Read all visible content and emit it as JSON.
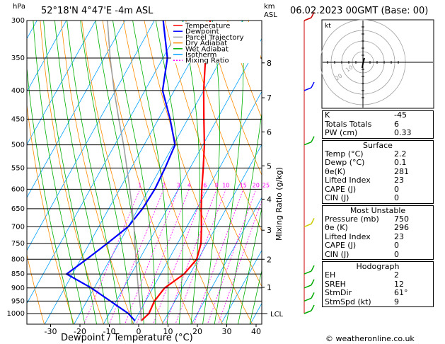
{
  "header": {
    "hpa_label": "hPa",
    "location": "52°18'N  4°47'E  -4m  ASL",
    "km_label": "km",
    "asl_label": "ASL",
    "date": "06.02.2023  00GMT  (Base: 00)"
  },
  "legend": [
    {
      "label": "Temperature",
      "color": "#ff0000",
      "dash": ""
    },
    {
      "label": "Dewpoint",
      "color": "#0000ff",
      "dash": ""
    },
    {
      "label": "Parcel Trajectory",
      "color": "#a0a0a0",
      "dash": ""
    },
    {
      "label": "Dry Adiabat",
      "color": "#ff8c00",
      "dash": ""
    },
    {
      "label": "Wet Adiabat",
      "color": "#00b000",
      "dash": ""
    },
    {
      "label": "Isotherm",
      "color": "#00a0ff",
      "dash": ""
    },
    {
      "label": "Mixing Ratio",
      "color": "#ff00ff",
      "dash": "2,2"
    }
  ],
  "colors": {
    "temperature": "#ff0000",
    "dewpoint": "#0000ff",
    "parcel": "#a0a0a0",
    "dry_adiabat": "#ff8c00",
    "wet_adiabat": "#00b000",
    "isotherm": "#00a0ff",
    "mixing_ratio": "#ff00ff"
  },
  "chart_data": {
    "type": "line",
    "title": "",
    "xlabel": "Dewpoint / Temperature (°C)",
    "ylabel": "hPa",
    "y2label": "Mixing Ratio (g/kg)",
    "x_ticks": [
      -30,
      -20,
      -10,
      0,
      10,
      20,
      30,
      40
    ],
    "pressure_levels": [
      300,
      350,
      400,
      450,
      500,
      550,
      600,
      650,
      700,
      750,
      800,
      850,
      900,
      950,
      1000
    ],
    "km_ticks": [
      {
        "label": "8",
        "p": 357
      },
      {
        "label": "7",
        "p": 412
      },
      {
        "label": "6",
        "p": 474
      },
      {
        "label": "5",
        "p": 545
      },
      {
        "label": "4",
        "p": 625
      },
      {
        "label": "3",
        "p": 710
      },
      {
        "label": "2",
        "p": 800
      },
      {
        "label": "1",
        "p": 898
      }
    ],
    "lcl_label": "LCL",
    "lcl_p": 1000,
    "mixing_ratio_labels": [
      "1",
      "2",
      "3",
      "4",
      "6",
      "8",
      "10",
      "15",
      "20",
      "25"
    ],
    "series": [
      {
        "name": "Temperature",
        "p": [
          1030,
          1000,
          950,
          900,
          850,
          800,
          750,
          700,
          650,
          600,
          550,
          500,
          450,
          400,
          350,
          300
        ],
        "t": [
          2.2,
          3.5,
          3.0,
          4.0,
          8.0,
          9.5,
          8.0,
          5.0,
          1.5,
          -2.0,
          -5.5,
          -9.5,
          -14.5,
          -20.0,
          -25.5,
          -31.0
        ]
      },
      {
        "name": "Dewpoint",
        "p": [
          1030,
          1000,
          950,
          900,
          850,
          800,
          750,
          700,
          650,
          600,
          550,
          500,
          450,
          400,
          350,
          300
        ],
        "t": [
          0.1,
          -3.5,
          -12.0,
          -21.0,
          -32.0,
          -28.0,
          -24.0,
          -20.0,
          -18.5,
          -18.0,
          -18.5,
          -19.5,
          -26.0,
          -34.0,
          -38.5,
          -47.0
        ]
      },
      {
        "name": "Parcel Trajectory",
        "p": [
          1030,
          1000,
          950,
          900,
          850,
          800,
          750,
          700,
          650,
          600,
          550,
          500,
          450,
          400,
          350,
          300
        ],
        "t": [
          2.2,
          0.8,
          -2.0,
          -5.0,
          -8.0,
          -11.2,
          -14.5,
          -18.0,
          -22.0,
          -26.5,
          -31.5,
          -37.0,
          -43.5,
          -50.5,
          -58.0,
          -66.0
        ]
      }
    ]
  },
  "hodograph": {
    "label": "kt",
    "ring_labels": [
      "10",
      "20"
    ]
  },
  "stats": {
    "basic": [
      {
        "label": "K",
        "value": "-45"
      },
      {
        "label": "Totals Totals",
        "value": "6"
      },
      {
        "label": "PW (cm)",
        "value": "0.33"
      }
    ],
    "surface_title": "Surface",
    "surface": [
      {
        "label": "Temp (°C)",
        "value": "2.2"
      },
      {
        "label": "Dewp (°C)",
        "value": "0.1"
      },
      {
        "label": "θe(K)",
        "value": "281"
      },
      {
        "label": "Lifted Index",
        "value": "23"
      },
      {
        "label": "CAPE (J)",
        "value": "0"
      },
      {
        "label": "CIN (J)",
        "value": "0"
      }
    ],
    "unstable_title": "Most Unstable",
    "unstable": [
      {
        "label": "Pressure (mb)",
        "value": "750"
      },
      {
        "label": "θe (K)",
        "value": "296"
      },
      {
        "label": "Lifted Index",
        "value": "23"
      },
      {
        "label": "CAPE (J)",
        "value": "0"
      },
      {
        "label": "CIN (J)",
        "value": "0"
      }
    ],
    "hodo_title": "Hodograph",
    "hodo": [
      {
        "label": "EH",
        "value": "2"
      },
      {
        "label": "SREH",
        "value": "12"
      },
      {
        "label": "StmDir",
        "value": "61°"
      },
      {
        "label": "StmSpd (kt)",
        "value": "9"
      }
    ]
  },
  "credit": "© weatheronline.co.uk"
}
